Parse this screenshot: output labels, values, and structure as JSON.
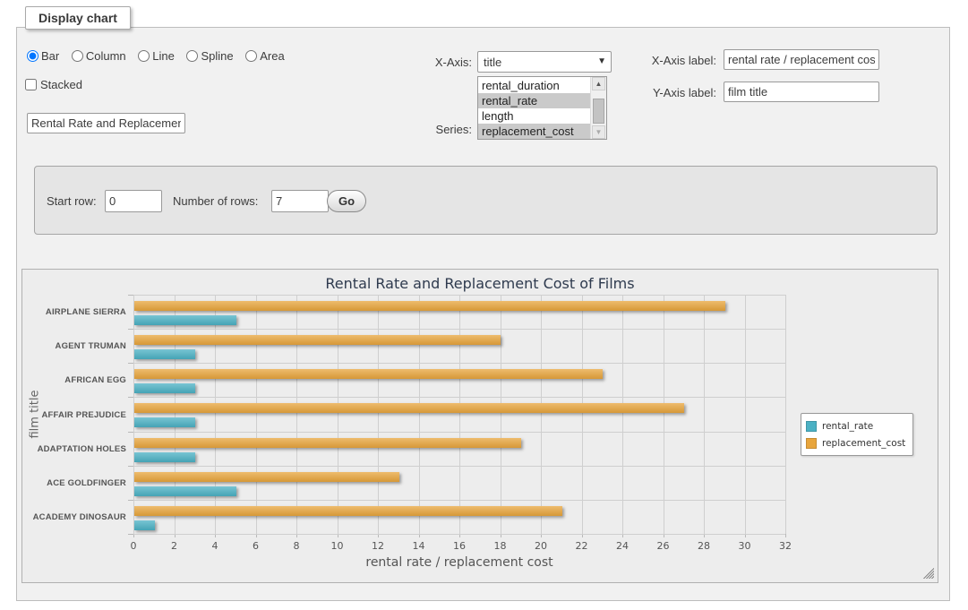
{
  "fieldset_legend": "Display chart",
  "controls": {
    "chart_types": [
      {
        "label": "Bar",
        "checked": "checked"
      },
      {
        "label": "Column"
      },
      {
        "label": "Line"
      },
      {
        "label": "Spline"
      },
      {
        "label": "Area"
      }
    ],
    "stacked_label": "Stacked",
    "chart_title_value": "Rental Rate and Replacement Cost of Films",
    "x_axis_label_text": "X-Axis:",
    "x_axis_selected": "title",
    "series_label_text": "Series:",
    "series_options": [
      {
        "label": "rental_duration",
        "selected": false
      },
      {
        "label": "rental_rate",
        "selected": true
      },
      {
        "label": "length",
        "selected": false
      },
      {
        "label": "replacement_cost",
        "selected": true
      }
    ],
    "x_axis_label_field": {
      "label": "X-Axis label:",
      "value": "rental rate / replacement cost"
    },
    "y_axis_label_field": {
      "label": "Y-Axis label:",
      "value": "film title"
    }
  },
  "row_controls": {
    "start_row_label": "Start row:",
    "start_row_value": "0",
    "num_rows_label": "Number of rows:",
    "num_rows_value": "7",
    "go_label": "Go"
  },
  "chart_data": {
    "type": "bar",
    "title": "Rental Rate and Replacement Cost of Films",
    "xlabel": "rental rate / replacement cost",
    "ylabel": "film title",
    "categories": [
      "AIRPLANE SIERRA",
      "AGENT TRUMAN",
      "AFRICAN EGG",
      "AFFAIR PREJUDICE",
      "ADAPTATION HOLES",
      "ACE GOLDFINGER",
      "ACADEMY DINOSAUR"
    ],
    "series": [
      {
        "name": "rental_rate",
        "color": "#4BB1C4",
        "values": [
          4.99,
          2.99,
          2.99,
          2.99,
          2.99,
          4.99,
          0.99
        ]
      },
      {
        "name": "replacement_cost",
        "color": "#E8A53C",
        "values": [
          28.99,
          17.99,
          22.99,
          26.99,
          18.99,
          12.99,
          20.99
        ]
      }
    ],
    "xlim": [
      0,
      32
    ],
    "xtick_step": 2,
    "grid": true,
    "legend_position": "right",
    "bar_visual_order": "second_series_on_top"
  }
}
